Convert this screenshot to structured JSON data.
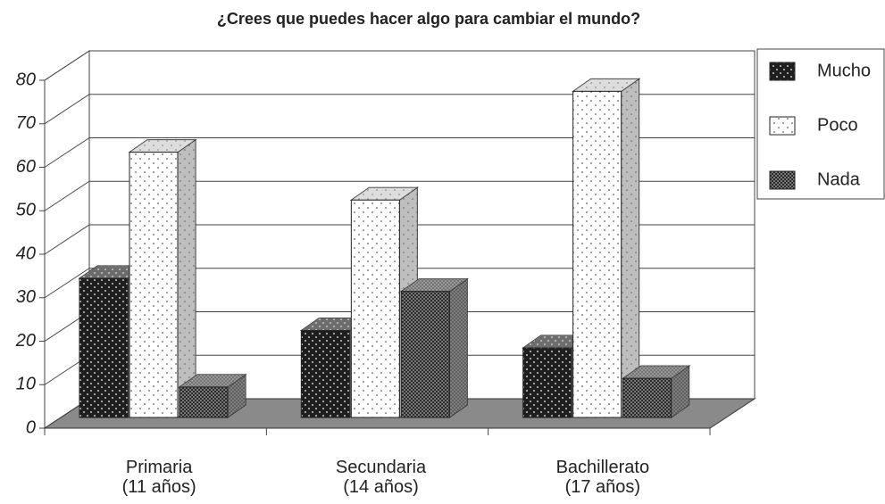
{
  "chart_data": {
    "type": "bar3d",
    "title": "¿Crees que puedes hacer algo para cambiar el mundo?",
    "categories": [
      "Primaria\n(11 años)",
      "Secundaria\n(14 años)",
      "Bachillerato\n(17 años)"
    ],
    "series": [
      {
        "name": "Mucho",
        "color": "#1e1e1e",
        "values": [
          32,
          20,
          16
        ]
      },
      {
        "name": "Poco",
        "color": "#ffffff",
        "values": [
          61,
          50,
          75
        ]
      },
      {
        "name": "Nada",
        "color": "#3a3a3a",
        "values": [
          7,
          29,
          9
        ]
      }
    ],
    "ylim": [
      0,
      80
    ],
    "yticks": [
      0,
      10,
      20,
      30,
      40,
      50,
      60,
      70,
      80
    ],
    "grid": true,
    "legend": "right"
  }
}
